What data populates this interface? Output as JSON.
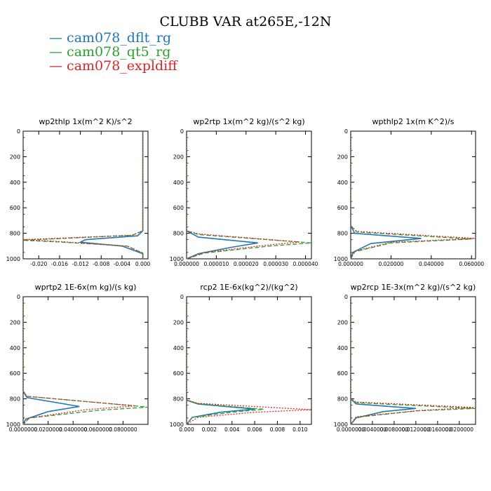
{
  "title": "CLUBB VAR at265E,-12N",
  "legend": [
    {
      "label": "cam078_dflt_rg",
      "color": "#1f77b4",
      "dash": "solid"
    },
    {
      "label": "cam078_qt5_rg",
      "color": "#2ca02c",
      "dash": "dashed"
    },
    {
      "label": "cam078_expldiff",
      "color": "#d62728",
      "dash": "dotted"
    }
  ],
  "chart_data": [
    {
      "type": "line",
      "title": "wp2thlp  1x(m^2 K)/s^2",
      "xlim": [
        -0.023,
        0.001
      ],
      "ylim": [
        1000,
        0
      ],
      "xticks": [
        "-0.020",
        "-0.016",
        "-0.012",
        "-0.008",
        "-0.004",
        "0.000"
      ],
      "xtick_values": [
        -0.02,
        -0.016,
        -0.012,
        -0.008,
        -0.004,
        0.0
      ],
      "yticks": [
        "0",
        "200",
        "400",
        "600",
        "800",
        "1000"
      ],
      "series": [
        {
          "name": "cam078_dflt_rg",
          "x": [
            0,
            0,
            -0.001,
            -0.011,
            -0.012,
            -0.004,
            0,
            0
          ],
          "y": [
            0,
            780,
            820,
            850,
            870,
            900,
            960,
            1000
          ]
        },
        {
          "name": "cam078_qt5_rg",
          "x": [
            0,
            0,
            -0.002,
            -0.023,
            -0.016,
            -0.003,
            0,
            0
          ],
          "y": [
            0,
            780,
            815,
            855,
            868,
            900,
            955,
            1000
          ]
        },
        {
          "name": "cam078_expldiff",
          "x": [
            0,
            0,
            -0.002,
            -0.023,
            -0.016,
            -0.003,
            0,
            0
          ],
          "y": [
            0,
            780,
            815,
            850,
            865,
            900,
            955,
            1000
          ]
        }
      ]
    },
    {
      "type": "line",
      "title": "wp2rtp  1x(m^2 kg)/(s^2 kg)",
      "xlim": [
        0,
        4.2e-05
      ],
      "ylim": [
        1000,
        0
      ],
      "xticks": [
        "0.000000",
        "0.000010",
        "0.000020",
        "0.000030",
        "0.000040"
      ],
      "xtick_values": [
        0,
        1e-05,
        2e-05,
        3e-05,
        4e-05
      ],
      "yticks": [
        "0",
        "200",
        "400",
        "600",
        "800",
        "1000"
      ],
      "series": [
        {
          "name": "cam078_dflt_rg",
          "x": [
            0,
            0,
            4e-06,
            2.4e-05,
            1.5e-05,
            4e-06,
            0
          ],
          "y": [
            0,
            780,
            830,
            875,
            910,
            960,
            1000
          ]
        },
        {
          "name": "cam078_qt5_rg",
          "x": [
            0,
            0,
            4e-06,
            4.2e-05,
            2.8e-05,
            6e-06,
            0
          ],
          "y": [
            0,
            780,
            810,
            875,
            900,
            955,
            1000
          ]
        },
        {
          "name": "cam078_expldiff",
          "x": [
            0,
            0,
            4e-06,
            3.8e-05,
            2.6e-05,
            6e-06,
            0
          ],
          "y": [
            0,
            780,
            805,
            868,
            895,
            950,
            1000
          ]
        }
      ]
    },
    {
      "type": "line",
      "title": "wpthlp2  1x(m K^2)/s",
      "xlim": [
        0,
        0.062
      ],
      "ylim": [
        1000,
        0
      ],
      "xticks": [
        "0.000000",
        "0.020000",
        "0.040000",
        "0.060000"
      ],
      "xtick_values": [
        0,
        0.02,
        0.04,
        0.06
      ],
      "yticks": [
        "0",
        "200",
        "400",
        "600",
        "800",
        "1000"
      ],
      "series": [
        {
          "name": "cam078_dflt_rg",
          "x": [
            0,
            0,
            0.002,
            0.035,
            0.01,
            0.001,
            0
          ],
          "y": [
            0,
            740,
            800,
            840,
            880,
            950,
            1000
          ]
        },
        {
          "name": "cam078_qt5_rg",
          "x": [
            0,
            0,
            0.003,
            0.06,
            0.02,
            0.002,
            0
          ],
          "y": [
            0,
            740,
            790,
            845,
            875,
            945,
            1000
          ]
        },
        {
          "name": "cam078_expldiff",
          "x": [
            0,
            0,
            0.003,
            0.062,
            0.02,
            0.002,
            0
          ],
          "y": [
            0,
            740,
            785,
            840,
            870,
            940,
            1000
          ]
        }
      ]
    },
    {
      "type": "line",
      "title": "wprtp2  1E-6x(m kg)/(s kg)",
      "xlim": [
        0,
        0.1
      ],
      "ylim": [
        1000,
        0
      ],
      "xticks": [
        "0.0000000",
        "0.0200000",
        "0.0400000",
        "0.0600000",
        "0.0800000"
      ],
      "xtick_values": [
        0,
        0.02,
        0.04,
        0.06,
        0.08
      ],
      "yticks": [
        "0",
        "200",
        "400",
        "600",
        "800",
        "1000"
      ],
      "series": [
        {
          "name": "cam078_dflt_rg",
          "x": [
            0,
            0,
            0.003,
            0.045,
            0.02,
            0.002,
            0
          ],
          "y": [
            0,
            740,
            790,
            860,
            900,
            960,
            1000
          ]
        },
        {
          "name": "cam078_qt5_rg",
          "x": [
            0,
            0,
            0.003,
            0.1,
            0.06,
            0.005,
            0
          ],
          "y": [
            0,
            740,
            780,
            865,
            890,
            950,
            1000
          ]
        },
        {
          "name": "cam078_expldiff",
          "x": [
            0,
            0,
            0.003,
            0.09,
            0.05,
            0.005,
            0
          ],
          "y": [
            0,
            740,
            780,
            855,
            885,
            950,
            1000
          ]
        }
      ]
    },
    {
      "type": "line",
      "title": "rcp2  1E-6x(kg^2)/(kg^2)",
      "xlim": [
        0,
        0.011
      ],
      "ylim": [
        1000,
        0
      ],
      "xticks": [
        "0.000",
        "0.002",
        "0.004",
        "0.006",
        "0.008",
        "0.010"
      ],
      "xtick_values": [
        0,
        0.002,
        0.004,
        0.006,
        0.008,
        0.01
      ],
      "yticks": [
        "0",
        "200",
        "400",
        "600",
        "800",
        "1000"
      ],
      "series": [
        {
          "name": "cam078_dflt_rg",
          "x": [
            0,
            0,
            0.001,
            0.006,
            0.003,
            0.0005,
            0
          ],
          "y": [
            0,
            810,
            840,
            880,
            905,
            945,
            1000
          ]
        },
        {
          "name": "cam078_qt5_rg",
          "x": [
            0,
            0,
            0.001,
            0.0068,
            0.004,
            0.0005,
            0
          ],
          "y": [
            0,
            810,
            838,
            882,
            905,
            945,
            1000
          ]
        },
        {
          "name": "cam078_expldiff",
          "x": [
            0,
            0,
            0.001,
            0.011,
            0.006,
            0.001,
            0
          ],
          "y": [
            0,
            810,
            835,
            885,
            905,
            945,
            1000
          ]
        }
      ]
    },
    {
      "type": "line",
      "title": "wp2rcp  1E-3x(m^2 kg)/(s^2 kg)",
      "xlim": [
        0,
        0.023
      ],
      "ylim": [
        1000,
        0
      ],
      "xticks": [
        "0.0000000",
        "0.0040000",
        "0.0080000",
        "0.0120000",
        "0.0160000",
        "0.0200000"
      ],
      "xtick_values": [
        0,
        0.004,
        0.008,
        0.012,
        0.016,
        0.02
      ],
      "yticks": [
        "0",
        "200",
        "400",
        "600",
        "800",
        "1000"
      ],
      "series": [
        {
          "name": "cam078_dflt_rg",
          "x": [
            0,
            0,
            0.001,
            0.012,
            0.006,
            0.001,
            0
          ],
          "y": [
            0,
            800,
            840,
            875,
            900,
            950,
            1000
          ]
        },
        {
          "name": "cam078_qt5_rg",
          "x": [
            0,
            0,
            0.001,
            0.023,
            0.012,
            0.001,
            0
          ],
          "y": [
            0,
            800,
            830,
            875,
            895,
            945,
            1000
          ]
        },
        {
          "name": "cam078_expldiff",
          "x": [
            0,
            0,
            0.001,
            0.023,
            0.013,
            0.001,
            0
          ],
          "y": [
            0,
            800,
            825,
            868,
            890,
            940,
            1000
          ]
        }
      ]
    }
  ]
}
